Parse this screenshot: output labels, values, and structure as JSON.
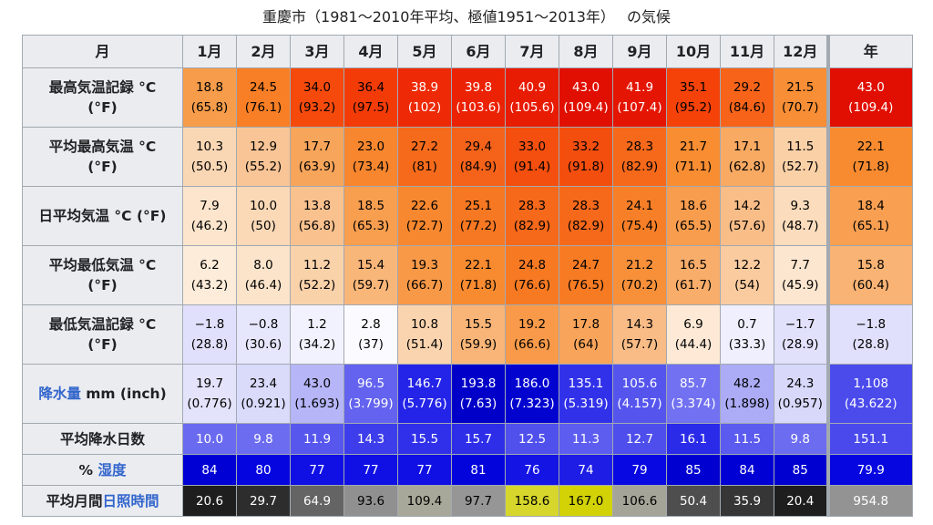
{
  "title": "重慶市（1981〜2010年平均、極値1951〜2013年）　 の気候",
  "header": {
    "corner": "月",
    "months": [
      "1月",
      "2月",
      "3月",
      "4月",
      "5月",
      "6月",
      "7月",
      "8月",
      "9月",
      "10月",
      "11月",
      "12月"
    ],
    "year": "年"
  },
  "rows": [
    {
      "label_parts": [
        {
          "text": "最高気温記録 °C",
          "link": false
        }
      ],
      "label_line2": "(°F)",
      "cells": [
        {
          "top": "18.8",
          "bot": "(65.8)",
          "bg": "#f69c4a",
          "fg": "#000000"
        },
        {
          "top": "24.5",
          "bot": "(76.1)",
          "bg": "#f87f25",
          "fg": "#000000"
        },
        {
          "top": "34.0",
          "bot": "(93.2)",
          "bg": "#f54a0c",
          "fg": "#000000"
        },
        {
          "top": "36.4",
          "bot": "(97.5)",
          "bg": "#f33b08",
          "fg": "#000000"
        },
        {
          "top": "38.9",
          "bot": "(102)",
          "bg": "#ee2905",
          "fg": "#ffffff"
        },
        {
          "top": "39.8",
          "bot": "(103.6)",
          "bg": "#ec2204",
          "fg": "#ffffff"
        },
        {
          "top": "40.9",
          "bot": "(105.6)",
          "bg": "#e81b03",
          "fg": "#ffffff"
        },
        {
          "top": "43.0",
          "bot": "(109.4)",
          "bg": "#e00f01",
          "fg": "#ffffff"
        },
        {
          "top": "41.9",
          "bot": "(107.4)",
          "bg": "#e41502",
          "fg": "#ffffff"
        },
        {
          "top": "35.1",
          "bot": "(95.2)",
          "bg": "#f44209",
          "fg": "#000000"
        },
        {
          "top": "29.2",
          "bot": "(84.6)",
          "bg": "#f76419",
          "fg": "#000000"
        },
        {
          "top": "21.5",
          "bot": "(70.7)",
          "bg": "#f88e35",
          "fg": "#000000"
        }
      ],
      "year": {
        "top": "43.0",
        "bot": "(109.4)",
        "bg": "#e00f01",
        "fg": "#ffffff"
      }
    },
    {
      "label_parts": [
        {
          "text": "平均最高気温 °C",
          "link": false
        }
      ],
      "label_line2": "(°F)",
      "cells": [
        {
          "top": "10.3",
          "bot": "(50.5)",
          "bg": "#fad7b4",
          "fg": "#000000"
        },
        {
          "top": "12.9",
          "bot": "(55.2)",
          "bg": "#f9c596",
          "fg": "#000000"
        },
        {
          "top": "17.7",
          "bot": "(63.9)",
          "bg": "#f7a55b",
          "fg": "#000000"
        },
        {
          "top": "23.0",
          "bot": "(73.4)",
          "bg": "#f7862e",
          "fg": "#000000"
        },
        {
          "top": "27.2",
          "bot": "(81)",
          "bg": "#f66b1b",
          "fg": "#000000"
        },
        {
          "top": "29.4",
          "bot": "(84.9)",
          "bg": "#f5621a",
          "fg": "#000000"
        },
        {
          "top": "33.0",
          "bot": "(91.4)",
          "bg": "#f44f0e",
          "fg": "#000000"
        },
        {
          "top": "33.2",
          "bot": "(91.8)",
          "bg": "#f44e0e",
          "fg": "#000000"
        },
        {
          "top": "28.3",
          "bot": "(82.9)",
          "bg": "#f6681a",
          "fg": "#000000"
        },
        {
          "top": "21.7",
          "bot": "(71.1)",
          "bg": "#f88d32",
          "fg": "#000000"
        },
        {
          "top": "17.1",
          "bot": "(62.8)",
          "bg": "#f8a962",
          "fg": "#000000"
        },
        {
          "top": "11.5",
          "bot": "(52.7)",
          "bg": "#fad0a6",
          "fg": "#000000"
        }
      ],
      "year": {
        "top": "22.1",
        "bot": "(71.8)",
        "bg": "#f88b30",
        "fg": "#000000"
      }
    },
    {
      "label_parts": [
        {
          "text": "日平均気温 °C (°F)",
          "link": false
        }
      ],
      "label_line2": "",
      "cells": [
        {
          "top": "7.9",
          "bot": "(46.2)",
          "bg": "#fce5cc",
          "fg": "#000000"
        },
        {
          "top": "10.0",
          "bot": "(50)",
          "bg": "#fbd9b7",
          "fg": "#000000"
        },
        {
          "top": "13.8",
          "bot": "(56.8)",
          "bg": "#f9c18e",
          "fg": "#000000"
        },
        {
          "top": "18.5",
          "bot": "(65.3)",
          "bg": "#f89e4f",
          "fg": "#000000"
        },
        {
          "top": "22.6",
          "bot": "(72.7)",
          "bg": "#f7882f",
          "fg": "#000000"
        },
        {
          "top": "25.1",
          "bot": "(77.2)",
          "bg": "#f67822",
          "fg": "#000000"
        },
        {
          "top": "28.3",
          "bot": "(82.9)",
          "bg": "#f6681a",
          "fg": "#000000"
        },
        {
          "top": "28.3",
          "bot": "(82.9)",
          "bg": "#f6681a",
          "fg": "#000000"
        },
        {
          "top": "24.1",
          "bot": "(75.4)",
          "bg": "#f77f27",
          "fg": "#000000"
        },
        {
          "top": "18.6",
          "bot": "(65.5)",
          "bg": "#f89d4e",
          "fg": "#000000"
        },
        {
          "top": "14.2",
          "bot": "(57.6)",
          "bg": "#f9bd88",
          "fg": "#000000"
        },
        {
          "top": "9.3",
          "bot": "(48.7)",
          "bg": "#fbdcbc",
          "fg": "#000000"
        }
      ],
      "year": {
        "top": "18.4",
        "bot": "(65.1)",
        "bg": "#f89f51",
        "fg": "#000000"
      }
    },
    {
      "label_parts": [
        {
          "text": "平均最低気温 °C",
          "link": false
        }
      ],
      "label_line2": "(°F)",
      "cells": [
        {
          "top": "6.2",
          "bot": "(43.2)",
          "bg": "#fdecd9",
          "fg": "#000000"
        },
        {
          "top": "8.0",
          "bot": "(46.4)",
          "bg": "#fce4cb",
          "fg": "#000000"
        },
        {
          "top": "11.2",
          "bot": "(52.2)",
          "bg": "#fad2aa",
          "fg": "#000000"
        },
        {
          "top": "15.4",
          "bot": "(59.7)",
          "bg": "#f9b679",
          "fg": "#000000"
        },
        {
          "top": "19.3",
          "bot": "(66.7)",
          "bg": "#f89948",
          "fg": "#000000"
        },
        {
          "top": "22.1",
          "bot": "(71.8)",
          "bg": "#f88b30",
          "fg": "#000000"
        },
        {
          "top": "24.8",
          "bot": "(76.6)",
          "bg": "#f77a23",
          "fg": "#000000"
        },
        {
          "top": "24.7",
          "bot": "(76.5)",
          "bg": "#f77b23",
          "fg": "#000000"
        },
        {
          "top": "21.2",
          "bot": "(70.2)",
          "bg": "#f8903a",
          "fg": "#000000"
        },
        {
          "top": "16.5",
          "bot": "(61.7)",
          "bg": "#f8ad6a",
          "fg": "#000000"
        },
        {
          "top": "12.2",
          "bot": "(54)",
          "bg": "#facb9f",
          "fg": "#000000"
        },
        {
          "top": "7.7",
          "bot": "(45.9)",
          "bg": "#fce6cf",
          "fg": "#000000"
        }
      ],
      "year": {
        "top": "15.8",
        "bot": "(60.4)",
        "bg": "#f9b374",
        "fg": "#000000"
      }
    },
    {
      "label_parts": [
        {
          "text": "最低気温記録 °C",
          "link": false
        }
      ],
      "label_line2": "(°F)",
      "cells": [
        {
          "top": "−1.8",
          "bot": "(28.8)",
          "bg": "#e0e0fc",
          "fg": "#000000"
        },
        {
          "top": "−0.8",
          "bot": "(30.6)",
          "bg": "#e6e6fd",
          "fg": "#000000"
        },
        {
          "top": "1.2",
          "bot": "(34.2)",
          "bg": "#f2f2fe",
          "fg": "#000000"
        },
        {
          "top": "2.8",
          "bot": "(37)",
          "bg": "#fbfbff",
          "fg": "#000000"
        },
        {
          "top": "10.8",
          "bot": "(51.4)",
          "bg": "#fad4af",
          "fg": "#000000"
        },
        {
          "top": "15.5",
          "bot": "(59.9)",
          "bg": "#f9b577",
          "fg": "#000000"
        },
        {
          "top": "19.2",
          "bot": "(66.6)",
          "bg": "#f89a49",
          "fg": "#000000"
        },
        {
          "top": "17.8",
          "bot": "(64)",
          "bg": "#f8a45a",
          "fg": "#000000"
        },
        {
          "top": "14.3",
          "bot": "(57.7)",
          "bg": "#f9bc86",
          "fg": "#000000"
        },
        {
          "top": "6.9",
          "bot": "(44.4)",
          "bg": "#fde9d5",
          "fg": "#000000"
        },
        {
          "top": "0.7",
          "bot": "(33.3)",
          "bg": "#efeffe",
          "fg": "#000000"
        },
        {
          "top": "−1.7",
          "bot": "(28.9)",
          "bg": "#e1e1fc",
          "fg": "#000000"
        }
      ],
      "year": {
        "top": "−1.8",
        "bot": "(28.8)",
        "bg": "#e0e0fc",
        "fg": "#000000"
      }
    },
    {
      "label_parts": [
        {
          "text": "降水量",
          "link": true
        },
        {
          "text": " mm (inch)",
          "link": false
        }
      ],
      "label_line2": "",
      "cells": [
        {
          "top": "19.7",
          "bot": "(0.776)",
          "bg": "#e3e3fc",
          "fg": "#000000"
        },
        {
          "top": "23.4",
          "bot": "(0.921)",
          "bg": "#dadafb",
          "fg": "#000000"
        },
        {
          "top": "43.0",
          "bot": "(1.693)",
          "bg": "#b5b5f7",
          "fg": "#000000"
        },
        {
          "top": "96.5",
          "bot": "(3.799)",
          "bg": "#6363ef",
          "fg": "#ffffff"
        },
        {
          "top": "146.7",
          "bot": "(5.776)",
          "bg": "#2424e8",
          "fg": "#ffffff"
        },
        {
          "top": "193.8",
          "bot": "(7.63)",
          "bg": "#0000c8",
          "fg": "#ffffff"
        },
        {
          "top": "186.0",
          "bot": "(7.323)",
          "bg": "#0303d0",
          "fg": "#ffffff"
        },
        {
          "top": "135.1",
          "bot": "(5.319)",
          "bg": "#3131ea",
          "fg": "#ffffff"
        },
        {
          "top": "105.6",
          "bot": "(4.157)",
          "bg": "#5555ee",
          "fg": "#ffffff"
        },
        {
          "top": "85.7",
          "bot": "(3.374)",
          "bg": "#7171f1",
          "fg": "#ffffff"
        },
        {
          "top": "48.2",
          "bot": "(1.898)",
          "bg": "#ababf6",
          "fg": "#000000"
        },
        {
          "top": "24.3",
          "bot": "(0.957)",
          "bg": "#d8d8fb",
          "fg": "#000000"
        }
      ],
      "year": {
        "top": "1,108",
        "bot": "(43.622)",
        "bg": "#4b4bec",
        "fg": "#ffffff"
      }
    },
    {
      "label_parts": [
        {
          "text": "平均降水日数",
          "link": false
        }
      ],
      "label_line2": "",
      "cells": [
        {
          "val": "10.0",
          "bg": "#6a6af0",
          "fg": "#ffffff"
        },
        {
          "val": "9.8",
          "bg": "#6c6cf0",
          "fg": "#ffffff"
        },
        {
          "val": "11.9",
          "bg": "#5757ee",
          "fg": "#ffffff"
        },
        {
          "val": "14.3",
          "bg": "#3d3deb",
          "fg": "#ffffff"
        },
        {
          "val": "15.5",
          "bg": "#3030ea",
          "fg": "#ffffff"
        },
        {
          "val": "15.7",
          "bg": "#2e2ee9",
          "fg": "#ffffff"
        },
        {
          "val": "12.5",
          "bg": "#5050ed",
          "fg": "#ffffff"
        },
        {
          "val": "11.3",
          "bg": "#5d5def",
          "fg": "#ffffff"
        },
        {
          "val": "12.7",
          "bg": "#4e4eec",
          "fg": "#ffffff"
        },
        {
          "val": "16.1",
          "bg": "#2a2ae9",
          "fg": "#ffffff"
        },
        {
          "val": "11.5",
          "bg": "#5b5bef",
          "fg": "#ffffff"
        },
        {
          "val": "9.8",
          "bg": "#6c6cf0",
          "fg": "#ffffff"
        }
      ],
      "year": {
        "val": "151.1",
        "bg": "#4a4aec",
        "fg": "#ffffff"
      }
    },
    {
      "label_parts": [
        {
          "text": "% ",
          "link": false
        },
        {
          "text": "湿度",
          "link": true
        }
      ],
      "label_line2": "",
      "cells": [
        {
          "val": "84",
          "bg": "#0000d4",
          "fg": "#ffffff"
        },
        {
          "val": "80",
          "bg": "#0505e0",
          "fg": "#ffffff"
        },
        {
          "val": "77",
          "bg": "#1010e4",
          "fg": "#ffffff"
        },
        {
          "val": "77",
          "bg": "#1010e4",
          "fg": "#ffffff"
        },
        {
          "val": "77",
          "bg": "#1010e4",
          "fg": "#ffffff"
        },
        {
          "val": "81",
          "bg": "#0303dc",
          "fg": "#ffffff"
        },
        {
          "val": "76",
          "bg": "#1414e5",
          "fg": "#ffffff"
        },
        {
          "val": "74",
          "bg": "#1d1de6",
          "fg": "#ffffff"
        },
        {
          "val": "79",
          "bg": "#0808e2",
          "fg": "#ffffff"
        },
        {
          "val": "85",
          "bg": "#0000d0",
          "fg": "#ffffff"
        },
        {
          "val": "84",
          "bg": "#0000d4",
          "fg": "#ffffff"
        },
        {
          "val": "85",
          "bg": "#0000d0",
          "fg": "#ffffff"
        }
      ],
      "year": {
        "val": "79.9",
        "bg": "#0606e1",
        "fg": "#ffffff"
      }
    },
    {
      "label_parts": [
        {
          "text": "平均月間",
          "link": false
        },
        {
          "text": "日照時間",
          "link": true
        }
      ],
      "label_line2": "",
      "cells": [
        {
          "val": "20.6",
          "bg": "#1e1e1e",
          "fg": "#ffffff"
        },
        {
          "val": "29.7",
          "bg": "#2d2d2d",
          "fg": "#ffffff"
        },
        {
          "val": "64.9",
          "bg": "#646464",
          "fg": "#ffffff"
        },
        {
          "val": "93.6",
          "bg": "#909090",
          "fg": "#000000"
        },
        {
          "val": "109.4",
          "bg": "#a8a89a",
          "fg": "#000000"
        },
        {
          "val": "97.7",
          "bg": "#969696",
          "fg": "#000000"
        },
        {
          "val": "158.6",
          "bg": "#d6d62c",
          "fg": "#000000"
        },
        {
          "val": "167.0",
          "bg": "#d2d206",
          "fg": "#000000"
        },
        {
          "val": "106.6",
          "bg": "#a4a498",
          "fg": "#000000"
        },
        {
          "val": "50.4",
          "bg": "#4e4e4e",
          "fg": "#ffffff"
        },
        {
          "val": "35.9",
          "bg": "#363636",
          "fg": "#ffffff"
        },
        {
          "val": "20.4",
          "bg": "#1e1e1e",
          "fg": "#ffffff"
        }
      ],
      "year": {
        "val": "954.8",
        "bg": "#939393",
        "fg": "#ffffff"
      }
    }
  ]
}
